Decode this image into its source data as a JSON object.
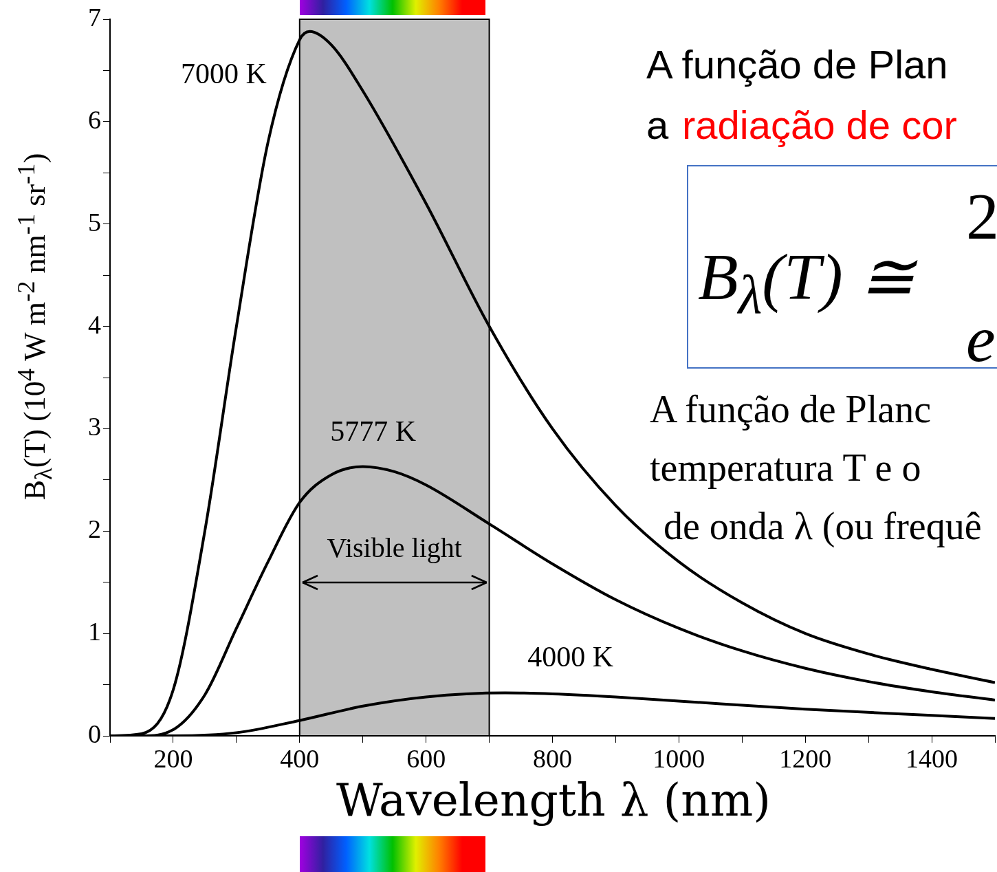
{
  "chart_data": {
    "type": "line",
    "xlabel": "Wavelength λ (nm)",
    "ylabel": "B$_{λ}$(T) (10$^{4}$ W m$^{-2}$ nm$^{-1}$ sr$^{-1}$)",
    "xlim": [
      100,
      1500
    ],
    "ylim": [
      0,
      7
    ],
    "xticks": [
      {
        "value": 100,
        "label": null
      },
      200,
      {
        "value": 300,
        "label": null
      },
      400,
      {
        "value": 500,
        "label": null
      },
      600,
      {
        "value": 700,
        "label": null
      },
      800,
      {
        "value": 900,
        "label": null
      },
      1000,
      {
        "value": 1100,
        "label": null
      },
      1200,
      {
        "value": 1300,
        "label": null
      },
      1400,
      {
        "value": 1500,
        "label": null
      }
    ],
    "yticks": [
      0,
      {
        "value": 0.5,
        "label": null
      },
      1,
      {
        "value": 1.5,
        "label": null
      },
      2,
      {
        "value": 2.5,
        "label": null
      },
      3,
      {
        "value": 3.5,
        "label": null
      },
      4,
      {
        "value": 4.5,
        "label": null
      },
      5,
      {
        "value": 5.5,
        "label": null
      },
      6,
      {
        "value": 6.5,
        "label": null
      },
      7
    ],
    "grid": false,
    "legend": false,
    "marker": "none",
    "line_style": "solid",
    "series": [
      {
        "name": "7000 K",
        "color": "#000000",
        "x": [
          100,
          150,
          200,
          250,
          300,
          350,
          400,
          416,
          450,
          500,
          600,
          700,
          800,
          900,
          1000,
          1100,
          1200,
          1300,
          1400,
          1500
        ],
        "values": [
          0,
          0.02,
          0.45,
          2.0,
          4.0,
          5.8,
          6.8,
          6.88,
          6.75,
          6.3,
          5.2,
          4.0,
          3.0,
          2.25,
          1.7,
          1.3,
          1.0,
          0.8,
          0.65,
          0.52
        ]
      },
      {
        "name": "5777 K",
        "color": "#000000",
        "x": [
          100,
          150,
          200,
          250,
          300,
          350,
          400,
          450,
          500,
          550,
          600,
          700,
          800,
          900,
          1000,
          1100,
          1200,
          1300,
          1400,
          1500
        ],
        "values": [
          0,
          0,
          0.06,
          0.4,
          1.05,
          1.7,
          2.28,
          2.55,
          2.63,
          2.58,
          2.45,
          2.07,
          1.68,
          1.33,
          1.05,
          0.83,
          0.66,
          0.53,
          0.43,
          0.35
        ]
      },
      {
        "name": "4000 K",
        "color": "#000000",
        "x": [
          100,
          200,
          300,
          400,
          500,
          600,
          725,
          800,
          900,
          1000,
          1200,
          1400,
          1500
        ],
        "values": [
          0,
          0,
          0.03,
          0.15,
          0.29,
          0.38,
          0.42,
          0.41,
          0.38,
          0.34,
          0.26,
          0.2,
          0.17
        ]
      }
    ],
    "bands": [
      {
        "axis": "x",
        "from": 400,
        "to": 700,
        "label": "Visible light",
        "color": "#c0c0c0"
      }
    ],
    "annotations": [
      "A função de Plan",
      "a",
      "radiação de cor",
      "B$_{λ}$(T) ≅",
      "2",
      "e",
      "A função de Planc",
      "temperatura T e o",
      "de onda λ (ou frequê"
    ]
  }
}
